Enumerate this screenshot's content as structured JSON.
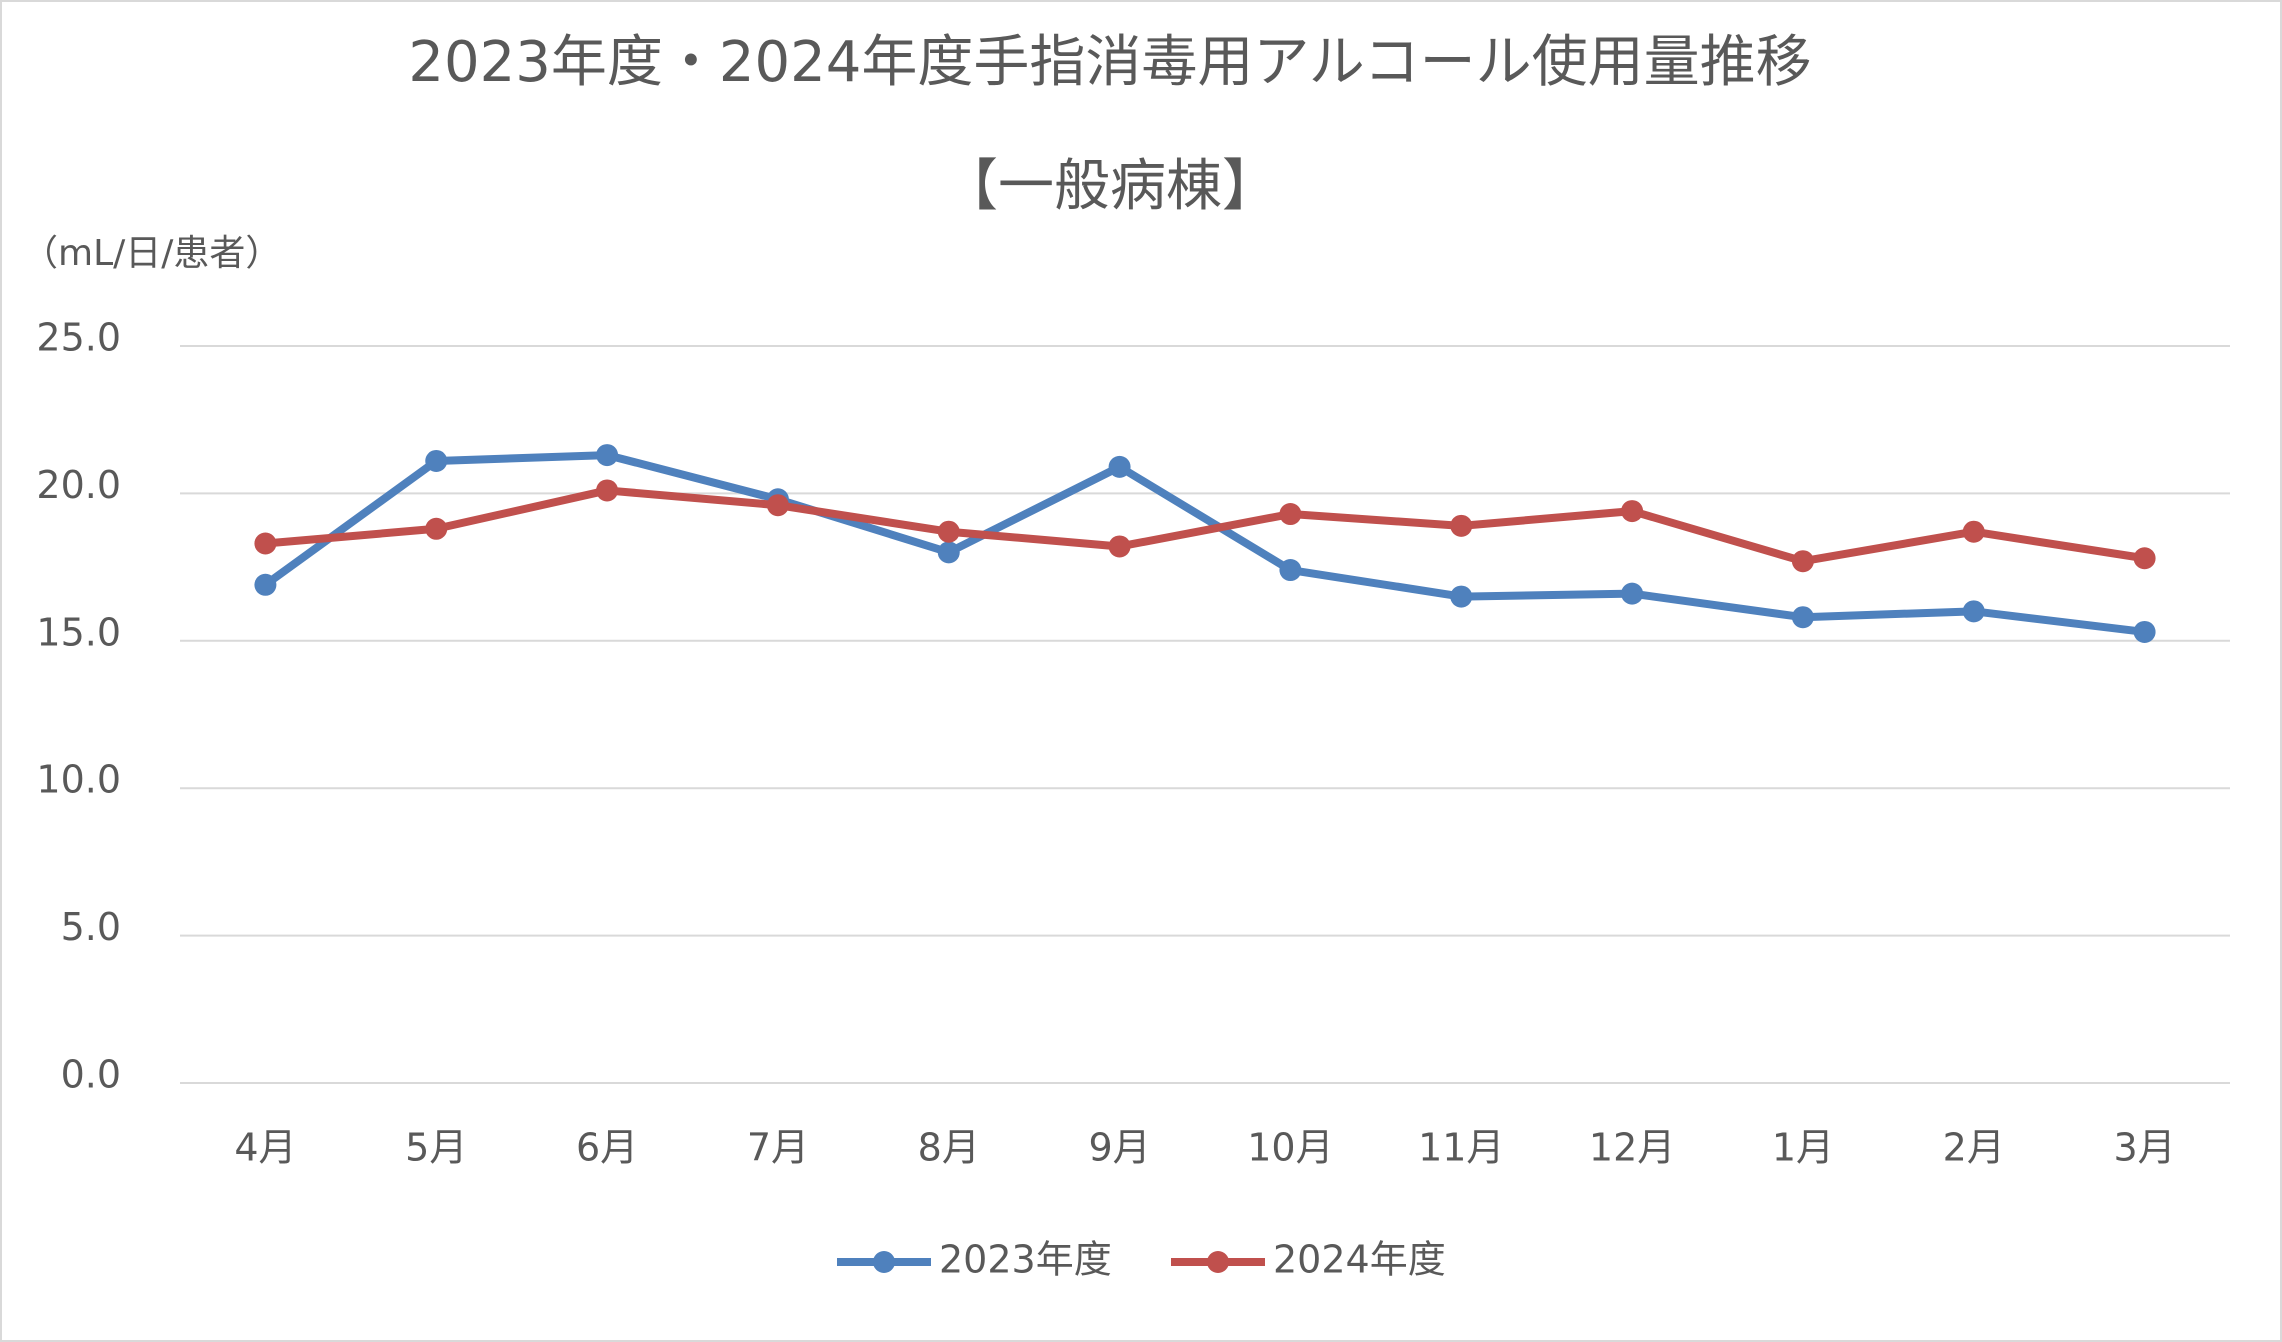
{
  "chart_data": {
    "type": "line",
    "title": "2023年度・2024年度手指消毒用アルコール使用量推移",
    "subtitle": "【一般病棟】",
    "y_axis_label": "（mL/日/患者）",
    "categories": [
      "4月",
      "5月",
      "6月",
      "7月",
      "8月",
      "9月",
      "10月",
      "11月",
      "12月",
      "1月",
      "2月",
      "3月"
    ],
    "series": [
      {
        "name": "2023年度",
        "color": "#4f81bd",
        "values": [
          16.9,
          21.1,
          21.3,
          19.8,
          18.0,
          20.9,
          17.4,
          16.5,
          16.6,
          15.8,
          16.0,
          15.3
        ]
      },
      {
        "name": "2024年度",
        "color": "#c0504d",
        "values": [
          18.3,
          18.8,
          20.1,
          19.6,
          18.7,
          18.2,
          19.3,
          18.9,
          19.4,
          17.7,
          18.7,
          17.8
        ]
      }
    ],
    "ylim": [
      0,
      25
    ],
    "yticks": [
      {
        "value": 0,
        "label": "0.0"
      },
      {
        "value": 5,
        "label": "5.0"
      },
      {
        "value": 10,
        "label": "10.0"
      },
      {
        "value": 15,
        "label": "15.0"
      },
      {
        "value": 20,
        "label": "20.0"
      },
      {
        "value": 25,
        "label": "25.0"
      }
    ],
    "grid": true,
    "legend": "bottom"
  }
}
